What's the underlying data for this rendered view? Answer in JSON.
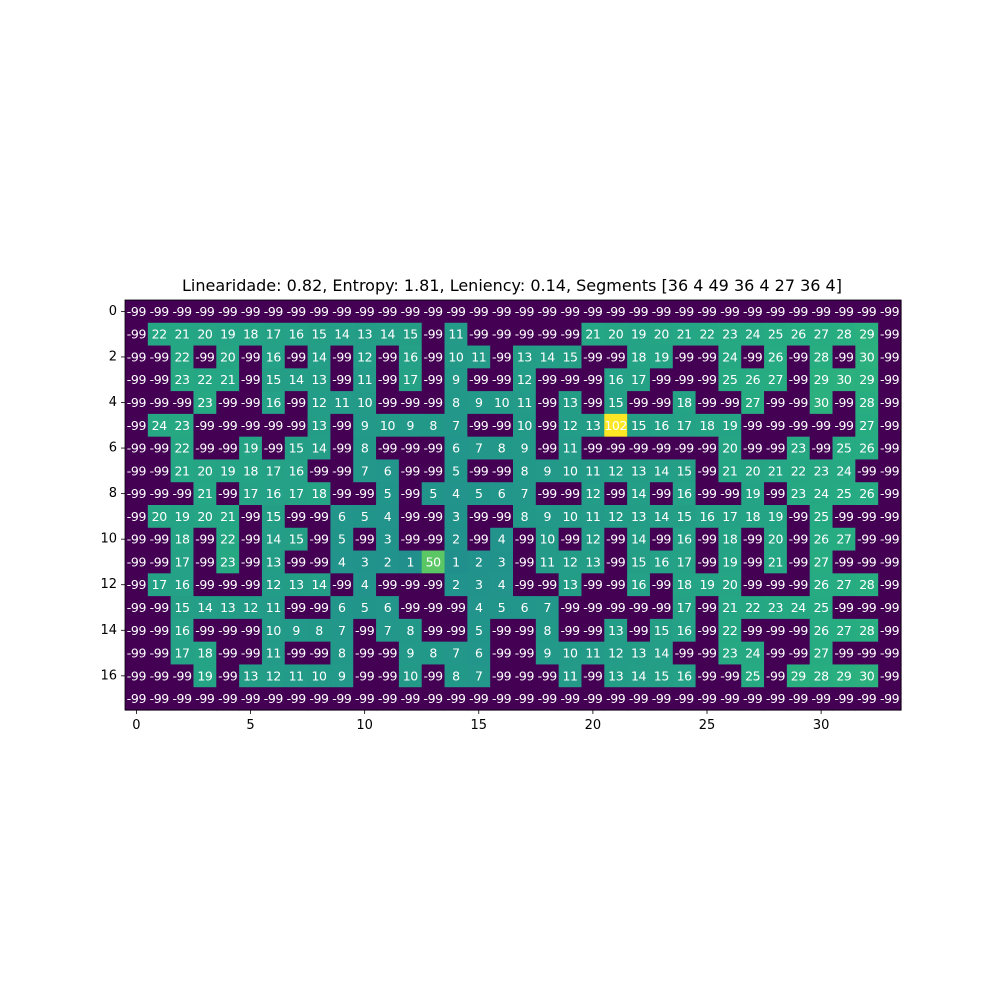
{
  "chart_data": {
    "type": "heatmap",
    "title": "Linearidade: 0.82, Entropy: 1.81, Leniency: 0.14, Segments [36  4 49 36  4 27 36  4]",
    "colormap": "viridis",
    "colors": {
      "wall": "#440154",
      "path": "#21918c",
      "mid": "#5ec962",
      "peak": "#fde725",
      "text": "#ffffff"
    },
    "x_ticks": [
      0,
      5,
      10,
      15,
      20,
      25,
      30
    ],
    "y_ticks": [
      0,
      2,
      4,
      6,
      8,
      10,
      12,
      14,
      16
    ],
    "grid": false,
    "values": [
      [
        -99,
        -99,
        -99,
        -99,
        -99,
        -99,
        -99,
        -99,
        -99,
        -99,
        -99,
        -99,
        -99,
        -99,
        -99,
        -99,
        -99,
        -99,
        -99,
        -99,
        -99,
        -99,
        -99,
        -99,
        -99,
        -99,
        -99,
        -99,
        -99,
        -99,
        -99,
        -99,
        -99,
        -99
      ],
      [
        -99,
        22,
        21,
        20,
        19,
        18,
        17,
        16,
        15,
        14,
        13,
        14,
        15,
        -99,
        11,
        -99,
        -99,
        -99,
        -99,
        -99,
        21,
        20,
        19,
        20,
        21,
        22,
        23,
        24,
        25,
        26,
        27,
        28,
        29,
        -99
      ],
      [
        -99,
        -99,
        22,
        -99,
        20,
        -99,
        16,
        -99,
        14,
        -99,
        12,
        -99,
        16,
        -99,
        10,
        11,
        -99,
        13,
        14,
        15,
        -99,
        -99,
        18,
        19,
        -99,
        -99,
        24,
        -99,
        26,
        -99,
        28,
        -99,
        30,
        -99
      ],
      [
        -99,
        -99,
        23,
        22,
        21,
        -99,
        15,
        14,
        13,
        -99,
        11,
        -99,
        17,
        -99,
        9,
        -99,
        -99,
        12,
        -99,
        -99,
        -99,
        16,
        17,
        -99,
        -99,
        -99,
        25,
        26,
        27,
        -99,
        29,
        30,
        29,
        -99
      ],
      [
        -99,
        -99,
        -99,
        23,
        -99,
        -99,
        16,
        -99,
        12,
        11,
        10,
        -99,
        -99,
        -99,
        8,
        9,
        10,
        11,
        -99,
        13,
        -99,
        15,
        -99,
        -99,
        18,
        -99,
        -99,
        27,
        -99,
        -99,
        30,
        -99,
        28,
        -99
      ],
      [
        -99,
        24,
        23,
        -99,
        -99,
        -99,
        -99,
        -99,
        13,
        -99,
        9,
        10,
        9,
        8,
        7,
        -99,
        -99,
        10,
        -99,
        12,
        13,
        102,
        15,
        16,
        17,
        18,
        19,
        -99,
        -99,
        -99,
        -99,
        -99,
        27,
        -99
      ],
      [
        -99,
        -99,
        22,
        -99,
        -99,
        19,
        -99,
        15,
        14,
        -99,
        8,
        -99,
        -99,
        -99,
        6,
        7,
        8,
        9,
        -99,
        11,
        -99,
        -99,
        -99,
        -99,
        -99,
        -99,
        20,
        -99,
        -99,
        23,
        -99,
        25,
        26,
        -99
      ],
      [
        -99,
        -99,
        21,
        20,
        19,
        18,
        17,
        16,
        -99,
        -99,
        7,
        6,
        -99,
        -99,
        5,
        -99,
        -99,
        8,
        9,
        10,
        11,
        12,
        13,
        14,
        15,
        -99,
        21,
        20,
        21,
        22,
        23,
        24,
        -99,
        -99
      ],
      [
        -99,
        -99,
        -99,
        21,
        -99,
        17,
        16,
        17,
        18,
        -99,
        -99,
        5,
        -99,
        5,
        4,
        5,
        6,
        7,
        -99,
        -99,
        12,
        -99,
        14,
        -99,
        16,
        -99,
        -99,
        19,
        -99,
        23,
        24,
        25,
        26,
        -99
      ],
      [
        -99,
        20,
        19,
        20,
        21,
        -99,
        15,
        -99,
        -99,
        6,
        5,
        4,
        -99,
        -99,
        3,
        -99,
        -99,
        8,
        9,
        10,
        11,
        12,
        13,
        14,
        15,
        16,
        17,
        18,
        19,
        -99,
        25,
        -99,
        -99,
        -99
      ],
      [
        -99,
        -99,
        18,
        -99,
        22,
        -99,
        14,
        15,
        -99,
        5,
        -99,
        3,
        -99,
        -99,
        2,
        -99,
        4,
        -99,
        10,
        -99,
        12,
        -99,
        14,
        -99,
        16,
        -99,
        18,
        -99,
        20,
        -99,
        26,
        27,
        -99,
        -99
      ],
      [
        -99,
        -99,
        17,
        -99,
        23,
        -99,
        13,
        -99,
        -99,
        4,
        3,
        2,
        1,
        50,
        1,
        2,
        3,
        -99,
        11,
        12,
        13,
        -99,
        15,
        16,
        17,
        -99,
        19,
        -99,
        21,
        -99,
        27,
        -99,
        -99,
        -99
      ],
      [
        -99,
        17,
        16,
        -99,
        -99,
        -99,
        12,
        13,
        14,
        -99,
        4,
        -99,
        -99,
        -99,
        2,
        3,
        4,
        -99,
        -99,
        13,
        -99,
        -99,
        16,
        -99,
        18,
        19,
        20,
        -99,
        -99,
        -99,
        26,
        27,
        28,
        -99
      ],
      [
        -99,
        -99,
        15,
        14,
        13,
        12,
        11,
        -99,
        -99,
        6,
        5,
        6,
        -99,
        -99,
        -99,
        4,
        5,
        6,
        7,
        -99,
        -99,
        -99,
        -99,
        -99,
        17,
        -99,
        21,
        22,
        23,
        24,
        25,
        -99,
        -99,
        -99
      ],
      [
        -99,
        -99,
        16,
        -99,
        -99,
        -99,
        10,
        9,
        8,
        7,
        -99,
        7,
        8,
        -99,
        -99,
        5,
        -99,
        -99,
        8,
        -99,
        -99,
        13,
        -99,
        15,
        16,
        -99,
        22,
        -99,
        -99,
        -99,
        26,
        27,
        28,
        -99
      ],
      [
        -99,
        -99,
        17,
        18,
        -99,
        -99,
        11,
        -99,
        -99,
        8,
        -99,
        -99,
        9,
        8,
        7,
        6,
        -99,
        -99,
        9,
        10,
        11,
        12,
        13,
        14,
        -99,
        -99,
        23,
        24,
        -99,
        -99,
        27,
        -99,
        -99,
        -99
      ],
      [
        -99,
        -99,
        -99,
        19,
        -99,
        13,
        12,
        11,
        10,
        9,
        -99,
        -99,
        10,
        -99,
        8,
        7,
        -99,
        -99,
        -99,
        11,
        -99,
        13,
        14,
        15,
        16,
        -99,
        -99,
        25,
        -99,
        29,
        28,
        29,
        30,
        -99
      ],
      [
        -99,
        -99,
        -99,
        -99,
        -99,
        -99,
        -99,
        -99,
        -99,
        -99,
        -99,
        -99,
        -99,
        -99,
        -99,
        -99,
        -99,
        -99,
        -99,
        -99,
        -99,
        -99,
        -99,
        -99,
        -99,
        -99,
        -99,
        -99,
        -99,
        -99,
        -99,
        -99,
        -99,
        -99
      ]
    ]
  }
}
